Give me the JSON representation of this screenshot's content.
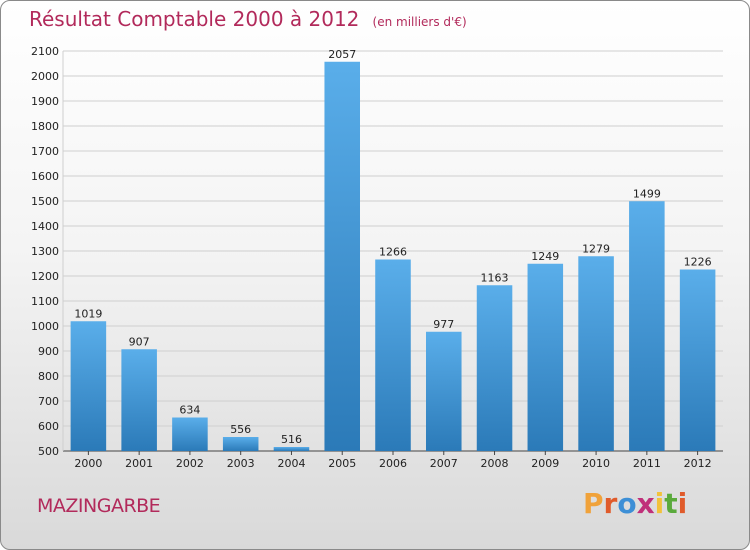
{
  "chart_data": {
    "type": "bar",
    "title": "Résultat Comptable 2000 à 2012",
    "subtitle": "(en milliers d'€)",
    "categories": [
      "2000",
      "2001",
      "2002",
      "2003",
      "2004",
      "2005",
      "2006",
      "2007",
      "2008",
      "2009",
      "2010",
      "2011",
      "2012"
    ],
    "values": [
      1019,
      907,
      634,
      556,
      516,
      2057,
      1266,
      977,
      1163,
      1249,
      1279,
      1499,
      1226
    ],
    "xlabel": "",
    "ylabel": "",
    "ylim": [
      500,
      2100
    ],
    "yticks": [
      500,
      600,
      700,
      800,
      900,
      1000,
      1100,
      1200,
      1300,
      1400,
      1500,
      1600,
      1700,
      1800,
      1900,
      2000,
      2100
    ],
    "grid": true,
    "colors": {
      "bar_light": "#5aaeea",
      "bar_dark": "#2b7ab8"
    }
  },
  "location": "MAZINGARBE",
  "logo": {
    "letters": [
      "P",
      "r",
      "o",
      "x",
      "i",
      "t",
      "i"
    ],
    "colors": [
      "#f0a23a",
      "#e05b2b",
      "#3d8fd6",
      "#c0307a",
      "#f2c23b",
      "#5aaa3c",
      "#e05b2b"
    ]
  }
}
